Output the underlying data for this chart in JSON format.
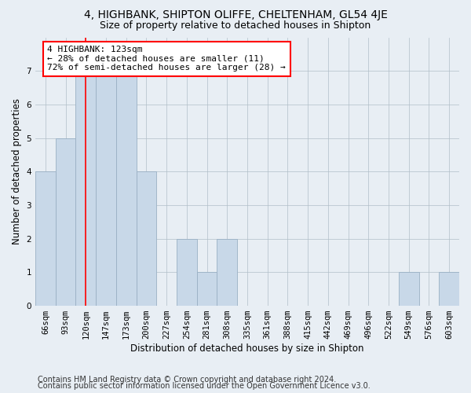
{
  "title": "4, HIGHBANK, SHIPTON OLIFFE, CHELTENHAM, GL54 4JE",
  "subtitle": "Size of property relative to detached houses in Shipton",
  "xlabel": "Distribution of detached houses by size in Shipton",
  "ylabel": "Number of detached properties",
  "categories": [
    "66sqm",
    "93sqm",
    "120sqm",
    "147sqm",
    "173sqm",
    "200sqm",
    "227sqm",
    "254sqm",
    "281sqm",
    "308sqm",
    "335sqm",
    "361sqm",
    "388sqm",
    "415sqm",
    "442sqm",
    "469sqm",
    "496sqm",
    "522sqm",
    "549sqm",
    "576sqm",
    "603sqm"
  ],
  "values": [
    4,
    5,
    7,
    7,
    7,
    4,
    0,
    2,
    1,
    2,
    0,
    0,
    0,
    0,
    0,
    0,
    0,
    0,
    1,
    0,
    1
  ],
  "bar_color": "#c8d8e8",
  "bar_edge_color": "#9ab0c4",
  "red_line_x": 2,
  "annotation_text": "4 HIGHBANK: 123sqm\n← 28% of detached houses are smaller (11)\n72% of semi-detached houses are larger (28) →",
  "annotation_box_color": "white",
  "annotation_box_edge": "red",
  "ylim": [
    0,
    8
  ],
  "yticks": [
    0,
    1,
    2,
    3,
    4,
    5,
    6,
    7,
    8
  ],
  "footer_line1": "Contains HM Land Registry data © Crown copyright and database right 2024.",
  "footer_line2": "Contains public sector information licensed under the Open Government Licence v3.0.",
  "background_color": "#e8eef4",
  "plot_background_color": "#e8eef4",
  "title_fontsize": 10,
  "subtitle_fontsize": 9,
  "axis_label_fontsize": 8.5,
  "tick_fontsize": 7.5,
  "annotation_fontsize": 8,
  "footer_fontsize": 7
}
